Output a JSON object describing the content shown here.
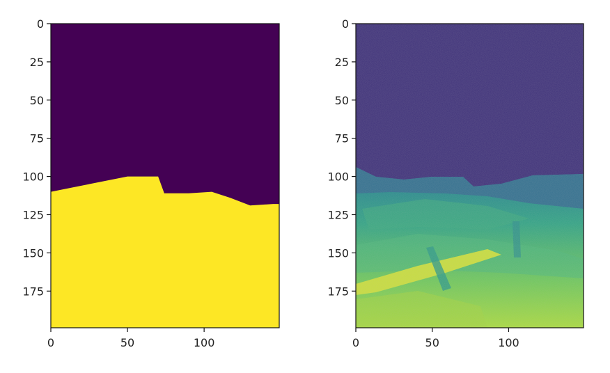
{
  "chart_data": [
    {
      "type": "heatmap",
      "name": "segmentation-mask",
      "title": "",
      "xlabel": "",
      "ylabel": "",
      "xlim": [
        0,
        149
      ],
      "ylim": [
        199,
        0
      ],
      "xticks": [
        0,
        50,
        100
      ],
      "yticks": [
        0,
        25,
        50,
        75,
        100,
        125,
        150,
        175
      ],
      "grid": false,
      "colormap": "viridis",
      "colors": {
        "low": "#440154",
        "high": "#fde725"
      },
      "boundary": [
        [
          0,
          110
        ],
        [
          15,
          107
        ],
        [
          30,
          104
        ],
        [
          50,
          100
        ],
        [
          70,
          100
        ],
        [
          74,
          111
        ],
        [
          90,
          111
        ],
        [
          105,
          110
        ],
        [
          117,
          114
        ],
        [
          130,
          119
        ],
        [
          145,
          118
        ],
        [
          149,
          118
        ]
      ]
    },
    {
      "type": "heatmap",
      "name": "depth-image",
      "title": "",
      "xlabel": "",
      "ylabel": "",
      "xlim": [
        0,
        149
      ],
      "ylim": [
        199,
        0
      ],
      "xticks": [
        0,
        50,
        100
      ],
      "yticks": [
        0,
        25,
        50,
        75,
        100,
        125,
        150,
        175
      ],
      "grid": false,
      "colormap": "viridis",
      "colors": {
        "sky": "#3b2d78",
        "horizon": "#2f6e8e",
        "mid": "#2ea383",
        "near": "#7fcf4e",
        "bright": "#c9df3a"
      }
    }
  ]
}
